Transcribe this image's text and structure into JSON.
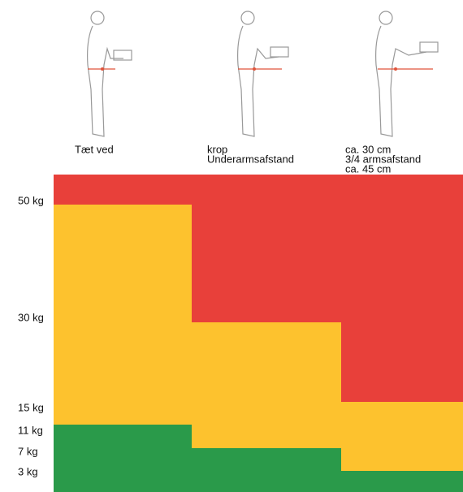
{
  "axis_labels": [
    "50 kg",
    "30 kg",
    "15 kg",
    "11 kg",
    "7 kg",
    "3 kg"
  ],
  "columns": [
    {
      "lines": [
        "Tæt ved"
      ]
    },
    {
      "lines": [
        "krop",
        "Underarmsafstand"
      ]
    },
    {
      "lines": [
        "ca. 30 cm",
        "3/4 armsafstand",
        "ca. 45 cm"
      ]
    }
  ]
}
